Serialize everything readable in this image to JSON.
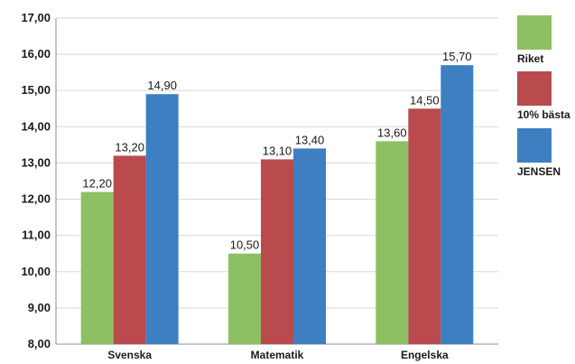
{
  "chart_data": {
    "type": "bar",
    "categories": [
      "Svenska",
      "Matematik",
      "Engelska"
    ],
    "series": [
      {
        "name": "Riket",
        "color": "#8dc063",
        "values": [
          12.2,
          10.5,
          13.6
        ],
        "labels": [
          "12,20",
          "10,50",
          "13,60"
        ]
      },
      {
        "name": "10% bästa",
        "color": "#b94b4e",
        "values": [
          13.2,
          13.1,
          14.5
        ],
        "labels": [
          "13,20",
          "13,10",
          "14,50"
        ]
      },
      {
        "name": "JENSEN",
        "color": "#3d7fc1",
        "values": [
          14.9,
          13.4,
          15.7
        ],
        "labels": [
          "14,90",
          "13,40",
          "15,70"
        ]
      }
    ],
    "y_ticks": [
      8,
      9,
      10,
      11,
      12,
      13,
      14,
      15,
      16,
      17
    ],
    "y_tick_labels": [
      "8,00",
      "9,00",
      "10,00",
      "11,00",
      "12,00",
      "13,00",
      "14,00",
      "15,00",
      "16,00",
      "17,00"
    ],
    "ylim": [
      8,
      17
    ],
    "title": "",
    "xlabel": "",
    "ylabel": "",
    "grid": true,
    "legend_position": "right"
  }
}
